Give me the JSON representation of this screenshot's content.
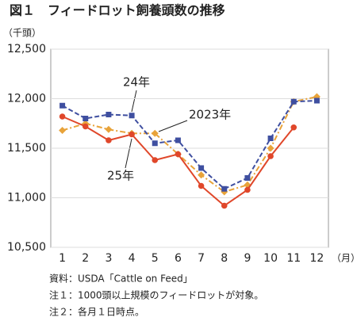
{
  "chart_data": {
    "type": "line",
    "title": "図１　フィードロット飼養頭数の推移",
    "y_unit": "（千頭）",
    "x_unit": "（月）",
    "categories": [
      "1",
      "2",
      "3",
      "4",
      "5",
      "6",
      "7",
      "8",
      "9",
      "10",
      "11",
      "12"
    ],
    "series": [
      {
        "name": "2023年",
        "color": "#e8a33a",
        "marker": "diamond",
        "line_style": "dashdot",
        "values": [
          11680,
          11750,
          11690,
          11650,
          11650,
          11440,
          11230,
          11060,
          11130,
          11500,
          11970,
          12020
        ]
      },
      {
        "name": "24年",
        "color": "#3f4fa0",
        "marker": "square",
        "line_style": "dashed",
        "values": [
          11930,
          11800,
          11840,
          11830,
          11550,
          11580,
          11300,
          11090,
          11200,
          11600,
          11970,
          11980
        ]
      },
      {
        "name": "25年",
        "color": "#e0472a",
        "marker": "circle",
        "line_style": "solid",
        "values": [
          11820,
          11720,
          11580,
          11640,
          11380,
          11440,
          11120,
          10920,
          11080,
          11420,
          11710,
          null
        ]
      }
    ],
    "ylim": [
      10500,
      12500
    ],
    "yticks": [
      {
        "value": 10500,
        "label": "10,500"
      },
      {
        "value": 11000,
        "label": "11,000"
      },
      {
        "value": 11500,
        "label": "11,500"
      },
      {
        "value": 12000,
        "label": "12,000"
      },
      {
        "value": 12500,
        "label": "12,500"
      }
    ],
    "grid": true,
    "notes": [
      "資料：USDA「Cattle on Feed」",
      "注１：1000頭以上規模のフィードロットが対象。",
      "注２：各月１日時点。"
    ]
  }
}
